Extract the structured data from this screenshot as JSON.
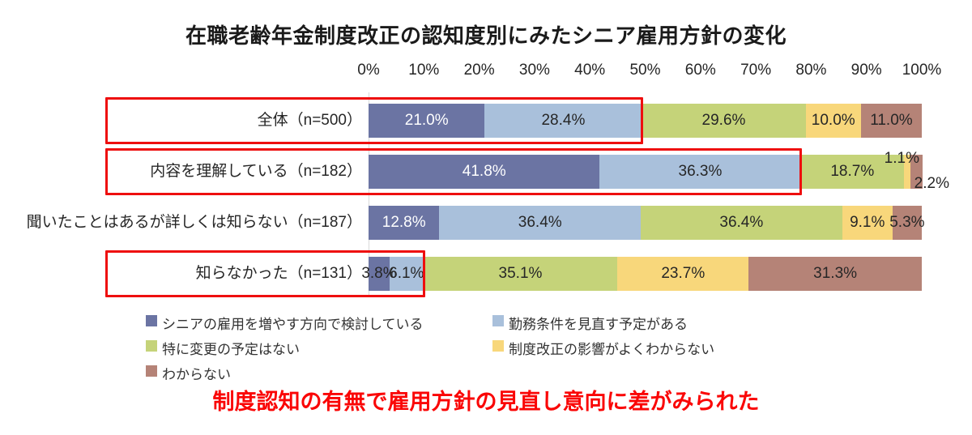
{
  "title": "在職老齢年金制度改正の認知度別にみたシニア雇用方針の変化",
  "annotation": "制度認知の有無で雇用方針の見直し意向に差がみられた",
  "colors": {
    "increase": "#6B74A3",
    "review": "#A9C0DB",
    "no_change": "#C5D379",
    "unknown_effect": "#F8D77B",
    "dont_know": "#B58377",
    "highlight_red": "#EE0E0E",
    "annotation_red": "#FA0606",
    "label_dark": "#262626",
    "label_white": "#FFFFFF"
  },
  "chart_data": {
    "type": "bar",
    "stacked": true,
    "orientation": "horizontal",
    "xlim": [
      0,
      100
    ],
    "grid": false,
    "x_ticks": [
      "0%",
      "10%",
      "20%",
      "30%",
      "40%",
      "50%",
      "60%",
      "70%",
      "80%",
      "90%",
      "100%"
    ],
    "categories": [
      "全体（n=500）",
      "内容を理解している（n=182）",
      "聞いたことはあるが詳しくは知らない（n=187）",
      "知らなかった（n=131）"
    ],
    "series": [
      {
        "name": "シニアの雇用を増やす方向で検討している",
        "color_key": "increase",
        "values": [
          21.0,
          41.8,
          12.8,
          3.8
        ]
      },
      {
        "name": "勤務条件を見直す予定がある",
        "color_key": "review",
        "values": [
          28.4,
          36.3,
          36.4,
          6.1
        ]
      },
      {
        "name": "特に変更の予定はない",
        "color_key": "no_change",
        "values": [
          29.6,
          18.7,
          36.4,
          35.1
        ]
      },
      {
        "name": "制度改正の影響がよくわからない",
        "color_key": "unknown_effect",
        "values": [
          10.0,
          1.1,
          9.1,
          23.7
        ]
      },
      {
        "name": "わからない",
        "color_key": "dont_know",
        "values": [
          11.0,
          2.2,
          5.3,
          31.3
        ]
      }
    ],
    "data_labels": [
      [
        "21.0%",
        "28.4%",
        "29.6%",
        "10.0%",
        "11.0%"
      ],
      [
        "41.8%",
        "36.3%",
        "18.7%",
        "1.1%",
        "2.2%"
      ],
      [
        "12.8%",
        "36.4%",
        "36.4%",
        "9.1%",
        "5.3%"
      ],
      [
        "3.8%",
        "6.1%",
        "35.1%",
        "23.7%",
        "31.3%"
      ]
    ],
    "floating_labels": [
      {
        "row": 1,
        "series": 3,
        "placement": "above-end"
      },
      {
        "row": 1,
        "series": 4,
        "placement": "below-end"
      }
    ],
    "highlight_boxes": [
      {
        "row": 0,
        "through_series": 1
      },
      {
        "row": 1,
        "through_series": 1
      },
      {
        "row": 3,
        "through_series": 1
      }
    ],
    "legend_position": "bottom-left"
  }
}
